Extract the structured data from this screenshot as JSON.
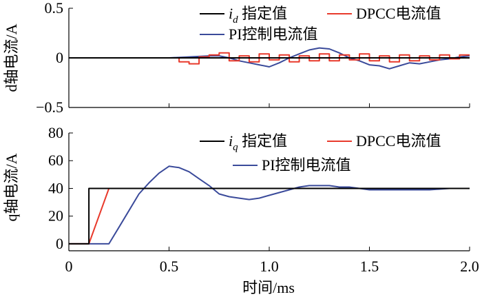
{
  "chart_data": [
    {
      "type": "line",
      "title": "",
      "xlabel": "",
      "ylabel": "d轴电流/A",
      "xlim": [
        0,
        2.0
      ],
      "ylim": [
        -0.5,
        0.5
      ],
      "yticks": [
        -0.5,
        0,
        0.5
      ],
      "ytick_labels": [
        "−0.5",
        "0",
        "0.5"
      ],
      "xticks": [
        0,
        0.5,
        1.0,
        1.5,
        2.0
      ],
      "legend": {
        "placement": "top-right"
      },
      "series": [
        {
          "name": "i_d 指定值",
          "legend_main": "i",
          "legend_sub": "d",
          "legend_rest": " 指定值",
          "color": "#000000",
          "x": [
            0,
            2.0
          ],
          "y": [
            0,
            0
          ]
        },
        {
          "name": "DPCC电流值",
          "color": "#e8392b",
          "x": [
            0,
            0.55,
            0.55,
            0.6,
            0.6,
            0.65,
            0.65,
            0.7,
            0.7,
            0.75,
            0.75,
            0.8,
            0.8,
            0.85,
            0.85,
            0.9,
            0.9,
            0.95,
            0.95,
            1.0,
            1.0,
            1.05,
            1.05,
            1.1,
            1.1,
            1.15,
            1.15,
            1.2,
            1.2,
            1.25,
            1.25,
            1.3,
            1.3,
            1.35,
            1.35,
            1.4,
            1.4,
            1.45,
            1.45,
            1.5,
            1.5,
            1.55,
            1.55,
            1.6,
            1.6,
            1.65,
            1.65,
            1.7,
            1.7,
            1.75,
            1.75,
            1.8,
            1.8,
            1.85,
            1.85,
            1.9,
            1.9,
            1.95,
            1.95,
            2.0
          ],
          "y": [
            0,
            0,
            -0.04,
            -0.04,
            -0.06,
            -0.06,
            0.01,
            0.01,
            0.03,
            0.03,
            0.05,
            0.05,
            -0.03,
            -0.03,
            0.02,
            0.02,
            -0.04,
            -0.04,
            0.04,
            0.04,
            -0.02,
            -0.02,
            0.03,
            0.03,
            -0.04,
            -0.04,
            0.02,
            0.02,
            -0.03,
            -0.03,
            0.04,
            0.04,
            -0.03,
            -0.03,
            0.03,
            0.03,
            -0.02,
            -0.02,
            0.04,
            0.04,
            -0.03,
            -0.03,
            0.02,
            0.02,
            -0.04,
            -0.04,
            0.03,
            0.03,
            -0.03,
            -0.03,
            0.02,
            0.02,
            -0.02,
            -0.02,
            0.03,
            0.03,
            -0.01,
            -0.01,
            0.03,
            0.03
          ]
        },
        {
          "name": "PI控制电流值",
          "color": "#3a4a9a",
          "x": [
            0,
            0.5,
            0.6,
            0.7,
            0.75,
            0.8,
            0.85,
            0.9,
            0.95,
            1.0,
            1.05,
            1.1,
            1.15,
            1.2,
            1.25,
            1.3,
            1.35,
            1.4,
            1.45,
            1.5,
            1.55,
            1.6,
            1.65,
            1.7,
            1.75,
            1.8,
            1.85,
            1.9,
            1.95,
            2.0
          ],
          "y": [
            0,
            0,
            0.01,
            0.02,
            0.02,
            0.0,
            -0.03,
            -0.05,
            -0.07,
            -0.09,
            -0.05,
            0.0,
            0.04,
            0.08,
            0.1,
            0.09,
            0.05,
            0.0,
            -0.03,
            -0.07,
            -0.08,
            -0.11,
            -0.08,
            -0.05,
            -0.06,
            -0.04,
            -0.02,
            -0.01,
            0.01,
            0.02
          ]
        }
      ]
    },
    {
      "type": "line",
      "title": "",
      "xlabel": "时间/ms",
      "ylabel": "q轴电流/A",
      "xlim": [
        0,
        2.0
      ],
      "ylim": [
        -5,
        80
      ],
      "yticks": [
        0,
        20,
        40,
        60,
        80
      ],
      "ytick_labels": [
        "0",
        "20",
        "40",
        "60",
        "80"
      ],
      "xticks": [
        0,
        0.5,
        1.0,
        1.5,
        2.0
      ],
      "xtick_labels": [
        "0",
        "0.5",
        "1.0",
        "1.5",
        "2.0"
      ],
      "legend": {
        "placement": "top-right"
      },
      "series": [
        {
          "name": "i_q 指定值",
          "legend_main": "i",
          "legend_sub": "q",
          "legend_rest": " 指定值",
          "color": "#000000",
          "x": [
            0,
            0.1,
            0.1,
            2.0
          ],
          "y": [
            0,
            0,
            40,
            40
          ]
        },
        {
          "name": "DPCC电流值",
          "color": "#e8392b",
          "x": [
            0,
            0.1,
            0.2,
            0.4,
            0.6,
            0.8,
            1.0,
            1.5,
            2.0
          ],
          "y": [
            0,
            0,
            40,
            40,
            40,
            40,
            40,
            40,
            40
          ]
        },
        {
          "name": "PI控制电流值",
          "color": "#3a4a9a",
          "x": [
            0,
            0.1,
            0.2,
            0.25,
            0.3,
            0.35,
            0.4,
            0.45,
            0.5,
            0.55,
            0.6,
            0.65,
            0.7,
            0.75,
            0.8,
            0.85,
            0.9,
            0.95,
            1.0,
            1.05,
            1.1,
            1.15,
            1.2,
            1.25,
            1.3,
            1.35,
            1.4,
            1.45,
            1.5,
            1.6,
            1.7,
            1.8,
            1.9,
            2.0
          ],
          "y": [
            0,
            0,
            0,
            12,
            24,
            36,
            44,
            51,
            56,
            55,
            52,
            47,
            42,
            36,
            34,
            33,
            32,
            33,
            35,
            37,
            39,
            41,
            42,
            42,
            42,
            41,
            41,
            40,
            39,
            39,
            39,
            39,
            40,
            40
          ]
        }
      ]
    }
  ]
}
